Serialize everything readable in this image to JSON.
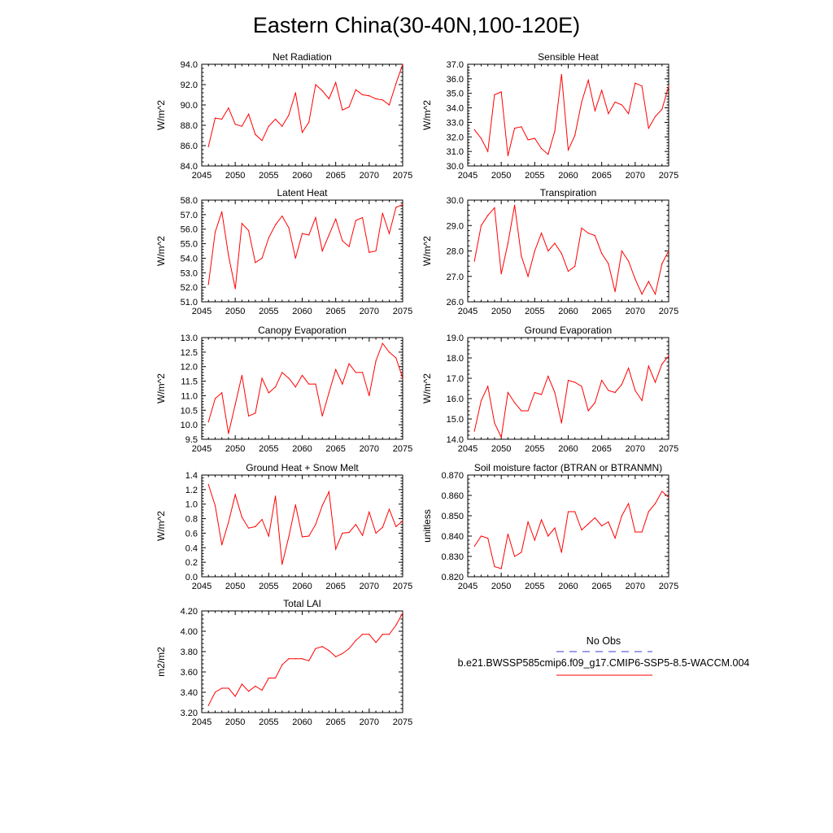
{
  "title": "Eastern China(30-40N,100-120E)",
  "legend": {
    "entries": [
      {
        "label": "No Obs",
        "color": "#3b3bd6",
        "style": "dashed"
      },
      {
        "label": "b.e21.BWSSP585cmip6.f09_g17.CMIP6-SSP5-8.5-WACCM.004",
        "color": "#ff0000",
        "style": "solid"
      }
    ]
  },
  "colors": {
    "series": "#ff0000",
    "axis": "#000000"
  },
  "chart_data": [
    {
      "type": "line",
      "title": "Net Radiation",
      "ylabel": "W/m^2",
      "xlim": [
        2045,
        2075
      ],
      "ylim": [
        84,
        94
      ],
      "yticks": [
        "84.0",
        "86.0",
        "88.0",
        "90.0",
        "92.0",
        "94.0"
      ],
      "xticks": [
        "2045",
        "2050",
        "2055",
        "2060",
        "2065",
        "2070",
        "2075"
      ],
      "x": [
        2046,
        2047,
        2048,
        2049,
        2050,
        2051,
        2052,
        2053,
        2054,
        2055,
        2056,
        2057,
        2058,
        2059,
        2060,
        2061,
        2062,
        2063,
        2064,
        2065,
        2066,
        2067,
        2068,
        2069,
        2070,
        2071,
        2072,
        2073,
        2074,
        2075
      ],
      "values": [
        85.9,
        88.7,
        88.6,
        89.7,
        88.1,
        87.9,
        89.1,
        87.1,
        86.5,
        87.9,
        88.6,
        87.9,
        89.0,
        91.2,
        87.3,
        88.3,
        92.0,
        91.4,
        90.6,
        92.2,
        89.5,
        89.8,
        91.5,
        91.0,
        90.9,
        90.6,
        90.5,
        90.0,
        92.1,
        94.0
      ]
    },
    {
      "type": "line",
      "title": "Sensible Heat",
      "ylabel": "W/m^2",
      "xlim": [
        2045,
        2075
      ],
      "ylim": [
        30,
        37
      ],
      "yticks": [
        "30.0",
        "31.0",
        "32.0",
        "33.0",
        "34.0",
        "35.0",
        "36.0",
        "37.0"
      ],
      "xticks": [
        "2045",
        "2050",
        "2055",
        "2060",
        "2065",
        "2070",
        "2075"
      ],
      "x": [
        2046,
        2047,
        2048,
        2049,
        2050,
        2051,
        2052,
        2053,
        2054,
        2055,
        2056,
        2057,
        2058,
        2059,
        2060,
        2061,
        2062,
        2063,
        2064,
        2065,
        2066,
        2067,
        2068,
        2069,
        2070,
        2071,
        2072,
        2073,
        2074,
        2075
      ],
      "values": [
        32.5,
        31.9,
        31.0,
        34.9,
        35.1,
        30.7,
        32.6,
        32.7,
        31.8,
        31.9,
        31.2,
        30.8,
        32.4,
        36.3,
        31.1,
        32.1,
        34.4,
        35.9,
        33.8,
        35.2,
        33.6,
        34.4,
        34.2,
        33.6,
        35.7,
        35.5,
        32.6,
        33.4,
        33.9,
        35.5
      ]
    },
    {
      "type": "line",
      "title": "Latent Heat",
      "ylabel": "W/m^2",
      "xlim": [
        2045,
        2075
      ],
      "ylim": [
        51,
        58
      ],
      "yticks": [
        "51.0",
        "52.0",
        "53.0",
        "54.0",
        "55.0",
        "56.0",
        "57.0",
        "58.0"
      ],
      "xticks": [
        "2045",
        "2050",
        "2055",
        "2060",
        "2065",
        "2070",
        "2075"
      ],
      "x": [
        2046,
        2047,
        2048,
        2049,
        2050,
        2051,
        2052,
        2053,
        2054,
        2055,
        2056,
        2057,
        2058,
        2059,
        2060,
        2061,
        2062,
        2063,
        2064,
        2065,
        2066,
        2067,
        2068,
        2069,
        2070,
        2071,
        2072,
        2073,
        2074,
        2075
      ],
      "values": [
        52.2,
        55.8,
        57.2,
        54.2,
        51.9,
        56.4,
        55.9,
        53.7,
        54.0,
        55.4,
        56.3,
        56.9,
        56.1,
        54.0,
        55.7,
        55.6,
        56.8,
        54.5,
        55.6,
        56.7,
        55.2,
        54.8,
        56.6,
        56.8,
        54.4,
        54.5,
        57.1,
        55.7,
        57.5,
        57.7
      ]
    },
    {
      "type": "line",
      "title": "Transpiration",
      "ylabel": "W/m^2",
      "xlim": [
        2045,
        2075
      ],
      "ylim": [
        26,
        30
      ],
      "yticks": [
        "26.0",
        "27.0",
        "28.0",
        "29.0",
        "30.0"
      ],
      "xticks": [
        "2045",
        "2050",
        "2055",
        "2060",
        "2065",
        "2070",
        "2075"
      ],
      "x": [
        2046,
        2047,
        2048,
        2049,
        2050,
        2051,
        2052,
        2053,
        2054,
        2055,
        2056,
        2057,
        2058,
        2059,
        2060,
        2061,
        2062,
        2063,
        2064,
        2065,
        2066,
        2067,
        2068,
        2069,
        2070,
        2071,
        2072,
        2073,
        2074,
        2075
      ],
      "values": [
        27.6,
        29.0,
        29.4,
        29.7,
        27.1,
        28.3,
        29.8,
        27.8,
        27.0,
        28.0,
        28.7,
        28.0,
        28.3,
        27.9,
        27.2,
        27.4,
        28.9,
        28.7,
        28.6,
        27.9,
        27.5,
        26.4,
        28.0,
        27.6,
        26.9,
        26.3,
        26.8,
        26.3,
        27.5,
        28.0
      ]
    },
    {
      "type": "line",
      "title": "Canopy Evaporation",
      "ylabel": "W/m^2",
      "xlim": [
        2045,
        2075
      ],
      "ylim": [
        9.5,
        13
      ],
      "yticks": [
        "9.5",
        "10.0",
        "10.5",
        "11.0",
        "11.5",
        "12.0",
        "12.5",
        "13.0"
      ],
      "xticks": [
        "2045",
        "2050",
        "2055",
        "2060",
        "2065",
        "2070",
        "2075"
      ],
      "x": [
        2046,
        2047,
        2048,
        2049,
        2050,
        2051,
        2052,
        2053,
        2054,
        2055,
        2056,
        2057,
        2058,
        2059,
        2060,
        2061,
        2062,
        2063,
        2064,
        2065,
        2066,
        2067,
        2068,
        2069,
        2070,
        2071,
        2072,
        2073,
        2074,
        2075
      ],
      "values": [
        10.1,
        10.9,
        11.1,
        9.7,
        10.7,
        11.7,
        10.3,
        10.4,
        11.6,
        11.1,
        11.3,
        11.8,
        11.6,
        11.3,
        11.7,
        11.4,
        11.4,
        10.3,
        11.1,
        11.9,
        11.4,
        12.1,
        11.8,
        11.8,
        11.0,
        12.2,
        12.8,
        12.5,
        12.3,
        11.6
      ]
    },
    {
      "type": "line",
      "title": "Ground Evaporation",
      "ylabel": "W/m^2",
      "xlim": [
        2045,
        2075
      ],
      "ylim": [
        14,
        19
      ],
      "yticks": [
        "14.0",
        "15.0",
        "16.0",
        "17.0",
        "18.0",
        "19.0"
      ],
      "xticks": [
        "2045",
        "2050",
        "2055",
        "2060",
        "2065",
        "2070",
        "2075"
      ],
      "x": [
        2046,
        2047,
        2048,
        2049,
        2050,
        2051,
        2052,
        2053,
        2054,
        2055,
        2056,
        2057,
        2058,
        2059,
        2060,
        2061,
        2062,
        2063,
        2064,
        2065,
        2066,
        2067,
        2068,
        2069,
        2070,
        2071,
        2072,
        2073,
        2074,
        2075
      ],
      "values": [
        14.4,
        15.9,
        16.6,
        14.8,
        14.1,
        16.3,
        15.8,
        15.4,
        15.4,
        16.3,
        16.2,
        17.1,
        16.3,
        14.8,
        16.9,
        16.8,
        16.6,
        15.4,
        15.8,
        16.9,
        16.4,
        16.3,
        16.7,
        17.5,
        16.4,
        15.9,
        17.6,
        16.8,
        17.7,
        18.1
      ]
    },
    {
      "type": "line",
      "title": "Ground Heat + Snow Melt",
      "ylabel": "W/m^2",
      "xlim": [
        2045,
        2075
      ],
      "ylim": [
        0,
        1.4
      ],
      "yticks": [
        "0.0",
        "0.2",
        "0.4",
        "0.6",
        "0.8",
        "1.0",
        "1.2",
        "1.4"
      ],
      "xticks": [
        "2045",
        "2050",
        "2055",
        "2060",
        "2065",
        "2070",
        "2075"
      ],
      "x": [
        2046,
        2047,
        2048,
        2049,
        2050,
        2051,
        2052,
        2053,
        2054,
        2055,
        2056,
        2057,
        2058,
        2059,
        2060,
        2061,
        2062,
        2063,
        2064,
        2065,
        2066,
        2067,
        2068,
        2069,
        2070,
        2071,
        2072,
        2073,
        2074,
        2075
      ],
      "values": [
        1.27,
        0.98,
        0.44,
        0.75,
        1.13,
        0.82,
        0.67,
        0.69,
        0.79,
        0.56,
        1.11,
        0.17,
        0.55,
        0.99,
        0.55,
        0.56,
        0.72,
        0.98,
        1.17,
        0.38,
        0.6,
        0.61,
        0.72,
        0.57,
        0.89,
        0.6,
        0.68,
        0.93,
        0.69,
        0.77
      ]
    },
    {
      "type": "line",
      "title": "Soil moisture factor (BTRAN or BTRANMN)",
      "ylabel": "unitless",
      "xlim": [
        2045,
        2075
      ],
      "ylim": [
        0.82,
        0.87
      ],
      "yticks": [
        "0.820",
        "0.830",
        "0.840",
        "0.850",
        "0.860",
        "0.870"
      ],
      "xticks": [
        "2045",
        "2050",
        "2055",
        "2060",
        "2065",
        "2070",
        "2075"
      ],
      "x": [
        2046,
        2047,
        2048,
        2049,
        2050,
        2051,
        2052,
        2053,
        2054,
        2055,
        2056,
        2057,
        2058,
        2059,
        2060,
        2061,
        2062,
        2063,
        2064,
        2065,
        2066,
        2067,
        2068,
        2069,
        2070,
        2071,
        2072,
        2073,
        2074,
        2075
      ],
      "values": [
        0.835,
        0.84,
        0.839,
        0.825,
        0.824,
        0.841,
        0.83,
        0.832,
        0.847,
        0.838,
        0.848,
        0.84,
        0.844,
        0.832,
        0.852,
        0.852,
        0.843,
        0.846,
        0.849,
        0.845,
        0.847,
        0.839,
        0.85,
        0.856,
        0.842,
        0.842,
        0.852,
        0.856,
        0.862,
        0.859
      ]
    },
    {
      "type": "line",
      "title": "Total LAI",
      "ylabel": "m2/m2",
      "xlim": [
        2045,
        2075
      ],
      "ylim": [
        3.2,
        4.2
      ],
      "yticks": [
        "3.20",
        "3.40",
        "3.60",
        "3.80",
        "4.00",
        "4.20"
      ],
      "xticks": [
        "2045",
        "2050",
        "2055",
        "2060",
        "2065",
        "2070",
        "2075"
      ],
      "x": [
        2046,
        2047,
        2048,
        2049,
        2050,
        2051,
        2052,
        2053,
        2054,
        2055,
        2056,
        2057,
        2058,
        2059,
        2060,
        2061,
        2062,
        2063,
        2064,
        2065,
        2066,
        2067,
        2068,
        2069,
        2070,
        2071,
        2072,
        2073,
        2074,
        2075
      ],
      "values": [
        3.27,
        3.4,
        3.44,
        3.44,
        3.36,
        3.48,
        3.41,
        3.46,
        3.42,
        3.54,
        3.54,
        3.67,
        3.73,
        3.73,
        3.73,
        3.71,
        3.83,
        3.85,
        3.81,
        3.75,
        3.78,
        3.83,
        3.91,
        3.97,
        3.97,
        3.89,
        3.97,
        3.97,
        4.06,
        4.18
      ]
    }
  ]
}
